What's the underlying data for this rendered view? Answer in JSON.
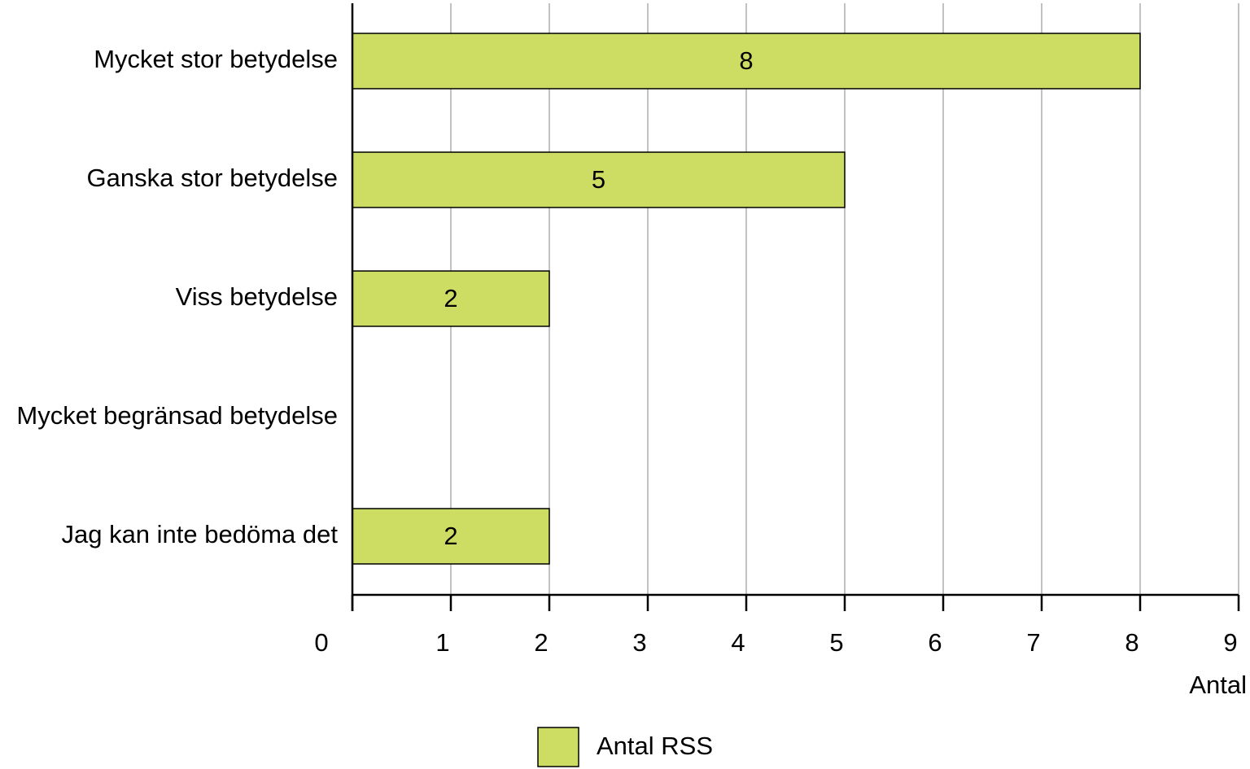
{
  "chart_data": {
    "type": "bar",
    "orientation": "horizontal",
    "categories": [
      "Mycket stor betydelse",
      "Ganska stor betydelse",
      "Viss betydelse",
      "Mycket begränsad betydelse",
      "Jag kan inte bedöma det"
    ],
    "series": [
      {
        "name": "Antal RSS",
        "values": [
          8,
          5,
          2,
          0,
          2
        ],
        "color": "#cddc62"
      }
    ],
    "data_labels": [
      "8",
      "5",
      "2",
      "",
      "2"
    ],
    "xlabel": "Antal",
    "ylabel": "",
    "xlim": [
      0,
      9
    ],
    "xticks": [
      "0",
      "1",
      "2",
      "3",
      "4",
      "5",
      "6",
      "7",
      "8",
      "9"
    ],
    "grid": true,
    "legend": {
      "placement": "bottom-center"
    }
  }
}
